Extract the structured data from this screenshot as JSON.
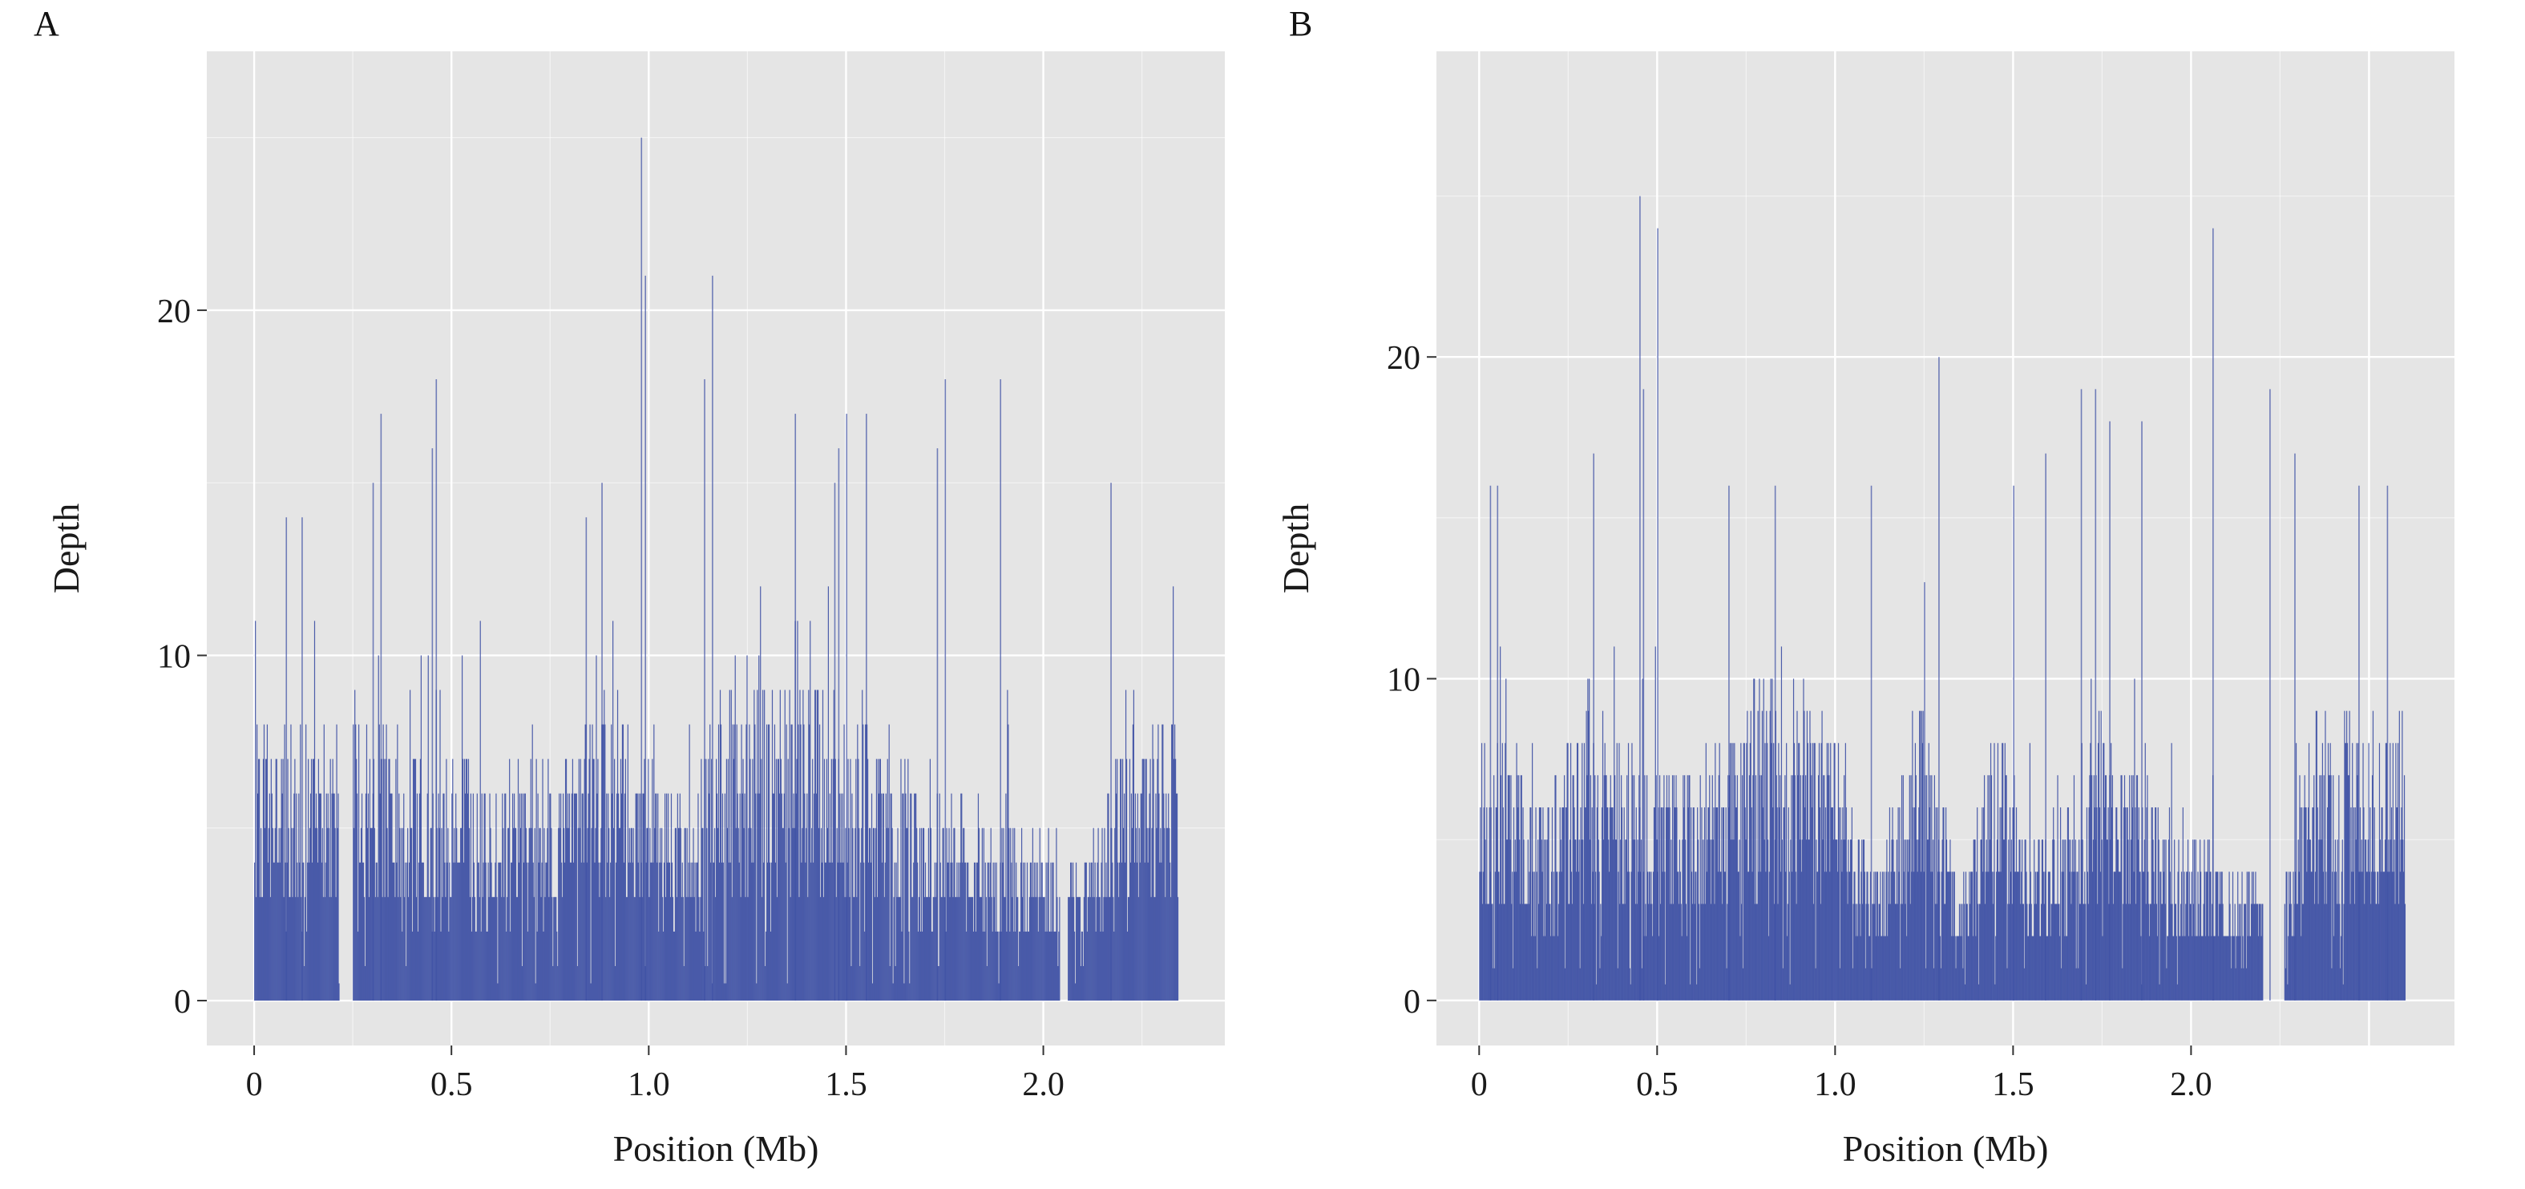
{
  "colors": {
    "panel_bg": "#e5e5e5",
    "grid_major": "#ffffff",
    "bar": "#3f51a5",
    "axis_tick": "#333333"
  },
  "chart_data": [
    {
      "label": "A",
      "type": "bar",
      "xlabel": "Position (Mb)",
      "ylabel": "Depth",
      "xlim": [
        -0.12,
        2.46
      ],
      "ylim": [
        -1.3,
        27.5
      ],
      "x_ticks": [
        0,
        0.5,
        1.0,
        1.5,
        2.0
      ],
      "x_tick_labels": [
        "0",
        "0.5",
        "1.0",
        "1.5",
        "2.0"
      ],
      "y_ticks": [
        0,
        10,
        20
      ],
      "y_tick_labels": [
        "0",
        "10",
        "20"
      ],
      "grid": true,
      "data_range": [
        0,
        2.34
      ],
      "gaps": [
        [
          0.215,
          0.25
        ],
        [
          2.04,
          2.06
        ]
      ],
      "bin_width": 0.002,
      "peaks": [
        [
          0.98,
          25
        ],
        [
          0.99,
          21
        ],
        [
          1.16,
          21
        ],
        [
          0.46,
          18
        ],
        [
          1.14,
          18
        ],
        [
          1.75,
          18
        ],
        [
          1.89,
          18
        ],
        [
          0.32,
          17
        ],
        [
          1.37,
          17
        ],
        [
          1.5,
          17
        ],
        [
          1.55,
          17
        ],
        [
          1.48,
          16
        ],
        [
          0.45,
          16
        ],
        [
          1.73,
          16
        ],
        [
          0.3,
          15
        ],
        [
          0.88,
          15
        ],
        [
          1.47,
          15
        ],
        [
          2.17,
          15
        ],
        [
          0.08,
          14
        ],
        [
          0.12,
          14
        ],
        [
          0.84,
          14
        ]
      ],
      "profile": [
        [
          0,
          7.5
        ],
        [
          0.2,
          6.5
        ],
        [
          0.26,
          8
        ],
        [
          0.4,
          6.5
        ],
        [
          0.75,
          6.5
        ],
        [
          0.9,
          8
        ],
        [
          1.0,
          6.5
        ],
        [
          1.1,
          5
        ],
        [
          1.2,
          9
        ],
        [
          1.55,
          8
        ],
        [
          1.7,
          5.5
        ],
        [
          1.9,
          5
        ],
        [
          2.1,
          3.5
        ],
        [
          2.2,
          7
        ],
        [
          2.34,
          8
        ]
      ],
      "seed": 7
    },
    {
      "label": "B",
      "type": "bar",
      "xlabel": "Position (Mb)",
      "ylabel": "Depth",
      "xlim": [
        -0.12,
        2.74
      ],
      "ylim": [
        -1.4,
        29.5
      ],
      "x_ticks": [
        0,
        0.5,
        1.0,
        1.5,
        2.0
      ],
      "x_tick_labels": [
        "0",
        "0.5",
        "1.0",
        "1.5",
        "2.0"
      ],
      "y_ticks": [
        0,
        10,
        20
      ],
      "y_tick_labels": [
        "0",
        "10",
        "20"
      ],
      "grid": true,
      "data_range": [
        0,
        2.6
      ],
      "gaps": [
        [
          2.2,
          2.26
        ]
      ],
      "bin_width": 0.002,
      "peaks": [
        [
          0.45,
          25
        ],
        [
          0.5,
          24
        ],
        [
          2.06,
          24
        ],
        [
          1.29,
          20
        ],
        [
          0.46,
          19
        ],
        [
          1.69,
          19
        ],
        [
          2.22,
          19
        ],
        [
          1.73,
          19
        ],
        [
          1.77,
          18
        ],
        [
          1.86,
          18
        ],
        [
          1.59,
          17
        ],
        [
          2.29,
          17
        ],
        [
          0.32,
          17
        ],
        [
          0.03,
          16
        ],
        [
          0.05,
          16
        ],
        [
          0.7,
          16
        ],
        [
          0.83,
          16
        ],
        [
          1.1,
          16
        ],
        [
          2.55,
          16
        ],
        [
          2.47,
          16
        ],
        [
          1.5,
          16
        ]
      ],
      "profile": [
        [
          0,
          8
        ],
        [
          0.2,
          6
        ],
        [
          0.3,
          9
        ],
        [
          0.45,
          7
        ],
        [
          0.6,
          6.5
        ],
        [
          0.8,
          9.5
        ],
        [
          1.0,
          8
        ],
        [
          1.1,
          3.5
        ],
        [
          1.25,
          9
        ],
        [
          1.35,
          3
        ],
        [
          1.45,
          8
        ],
        [
          1.55,
          4.5
        ],
        [
          1.75,
          8
        ],
        [
          1.95,
          5
        ],
        [
          2.1,
          4
        ],
        [
          2.25,
          3
        ],
        [
          2.35,
          8
        ],
        [
          2.6,
          8
        ]
      ],
      "seed": 23
    }
  ]
}
